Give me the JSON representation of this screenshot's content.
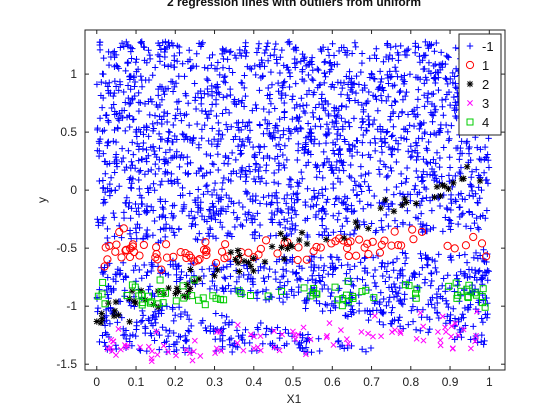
{
  "chart_data": {
    "type": "scatter",
    "title": "2 regression lines with outliers from uniform",
    "xlabel": "X1",
    "ylabel": "y",
    "xlim": [
      -0.03,
      1.04
    ],
    "ylim": [
      -1.55,
      1.38
    ],
    "xticks": [
      "0",
      "0.1",
      "0.2",
      "0.3",
      "0.4",
      "0.5",
      "0.6",
      "0.7",
      "0.8",
      "0.9",
      "1"
    ],
    "xtick_values": [
      0,
      0.1,
      0.2,
      0.3,
      0.4,
      0.5,
      0.6,
      0.7,
      0.8,
      0.9,
      1
    ],
    "yticks": [
      "1",
      "0.5",
      "0",
      "-0.5",
      "-1",
      "-1.5"
    ],
    "ytick_values": [
      1,
      0.5,
      0,
      -0.5,
      -1,
      -1.5
    ],
    "grid": false,
    "legend_placement": "top-right",
    "series": [
      {
        "name": "-1",
        "marker": "plus",
        "color": "#0000ff",
        "generator": {
          "kind": "uniform_uniform_fill",
          "count": 2600,
          "seed": 7,
          "x_range": [
            0,
            1
          ],
          "y_range": [
            -1.4,
            1.28
          ],
          "exclude_bands": [
            {
              "a": 0.12,
              "b": -0.55,
              "half_width": 0.08,
              "x_from": 0.0,
              "x_to": 1.0
            },
            {
              "a": -0.7,
              "b": -0.75,
              "half_width": 0.1,
              "x_from": 0.15,
              "x_to": 1.0
            }
          ]
        }
      },
      {
        "name": "1",
        "marker": "circle",
        "color": "#ff0000",
        "generator": {
          "kind": "line_noise",
          "count": 90,
          "seed": 11,
          "a": 0.1,
          "b": -0.55,
          "noise": 0.06,
          "x_range": [
            0,
            1
          ]
        }
      },
      {
        "name": "2",
        "marker": "star",
        "color": "#000000",
        "generator": {
          "kind": "line_noise",
          "count": 80,
          "seed": 19,
          "a": 1.25,
          "b": -1.1,
          "noise": 0.07,
          "x_range": [
            0,
            0.98
          ]
        }
      },
      {
        "name": "3",
        "marker": "x",
        "color": "#ff00ff",
        "generator": {
          "kind": "line_noise",
          "count": 90,
          "seed": 23,
          "a": 0.15,
          "b": -1.35,
          "noise": 0.07,
          "x_range": [
            0,
            0.97
          ]
        }
      },
      {
        "name": "4",
        "marker": "square",
        "color": "#00cc00",
        "generator": {
          "kind": "line_noise",
          "count": 75,
          "seed": 31,
          "a": 0.0,
          "b": -0.9,
          "noise": 0.06,
          "x_range": [
            0,
            1
          ]
        }
      }
    ]
  }
}
